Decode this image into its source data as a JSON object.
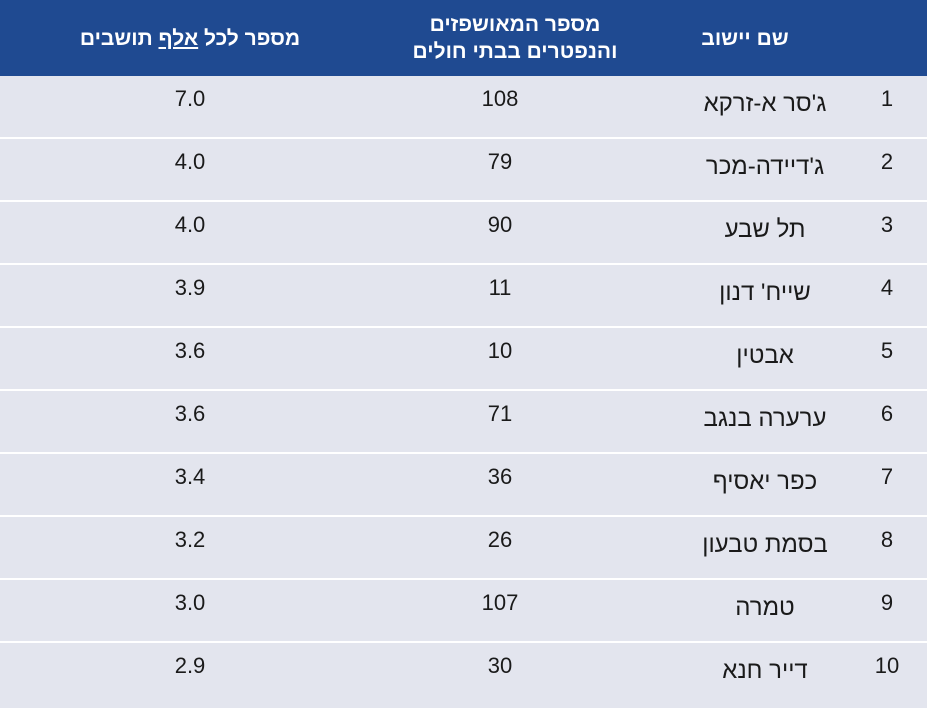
{
  "header": {
    "name": "שם יישוב",
    "count_line1": "מספר המאושפזים",
    "count_line2": "והנפטרים בבתי חולים",
    "rate_before": "מספר לכל ",
    "rate_underlined": "אלף",
    "rate_after": " תושבים"
  },
  "rows": [
    {
      "num": "1",
      "name": "ג'סר א-זרקא",
      "count": "108",
      "rate": "7.0"
    },
    {
      "num": "2",
      "name": "ג'דיידה-מכר",
      "count": "79",
      "rate": "4.0"
    },
    {
      "num": "3",
      "name": "תל שבע",
      "count": "90",
      "rate": "4.0"
    },
    {
      "num": "4",
      "name": "שייח' דנון",
      "count": "11",
      "rate": "3.9"
    },
    {
      "num": "5",
      "name": "אבטין",
      "count": "10",
      "rate": "3.6"
    },
    {
      "num": "6",
      "name": "ערערה בנגב",
      "count": "71",
      "rate": "3.6"
    },
    {
      "num": "7",
      "name": "כפר יאסיף",
      "count": "36",
      "rate": "3.4"
    },
    {
      "num": "8",
      "name": "בסמת טבעון",
      "count": "26",
      "rate": "3.2"
    },
    {
      "num": "9",
      "name": "טמרה",
      "count": "107",
      "rate": "3.0"
    },
    {
      "num": "10",
      "name": "דייר חנא",
      "count": "30",
      "rate": "2.9"
    }
  ],
  "colors": {
    "header_bg": "#1f4a91",
    "row_bg": "#e3e5ee"
  }
}
